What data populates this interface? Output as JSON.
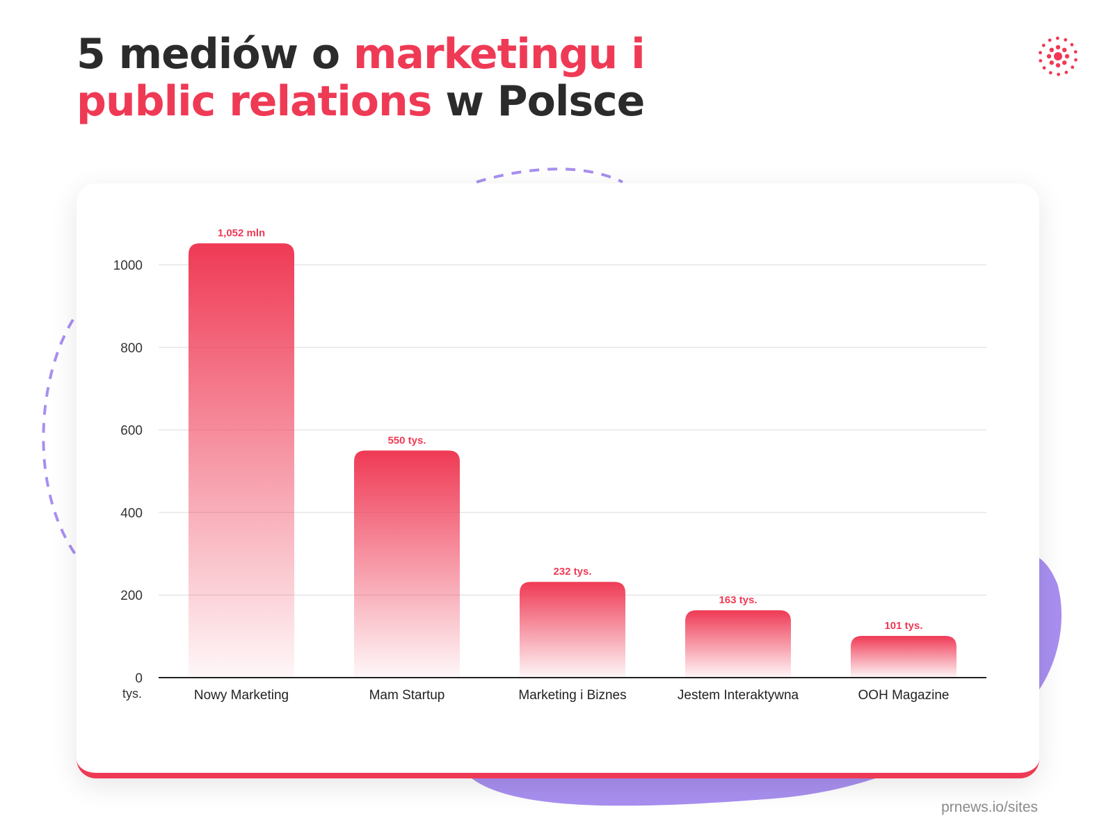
{
  "header": {
    "title_part1": "5 mediów o ",
    "title_accent1": "marketingu i public relations",
    "title_part2": " w Polsce"
  },
  "logo": {
    "icon": "dotted-burst-icon"
  },
  "footer": {
    "source": "prnews.io/sites"
  },
  "colors": {
    "accent": "#ef3a55",
    "title": "#2b2b2b",
    "decor_purple": "#a88ff0"
  },
  "chart_data": {
    "type": "bar",
    "title": "",
    "xlabel": "",
    "ylabel": "",
    "y_unit_label": "tys.",
    "categories": [
      "Nowy Marketing",
      "Mam Startup",
      "Marketing i Biznes",
      "Jestem Interaktywna",
      "OOH Magazine"
    ],
    "values": [
      1052,
      550,
      232,
      163,
      101
    ],
    "data_labels": [
      "1,052 mln",
      "550 tys.",
      "232 tys.",
      "163 tys.",
      "101 tys."
    ],
    "y_ticks": [
      0,
      200,
      400,
      600,
      800,
      1000
    ],
    "ylim": [
      0,
      1000
    ],
    "grid": true,
    "bar_color": "#ef3a55"
  }
}
